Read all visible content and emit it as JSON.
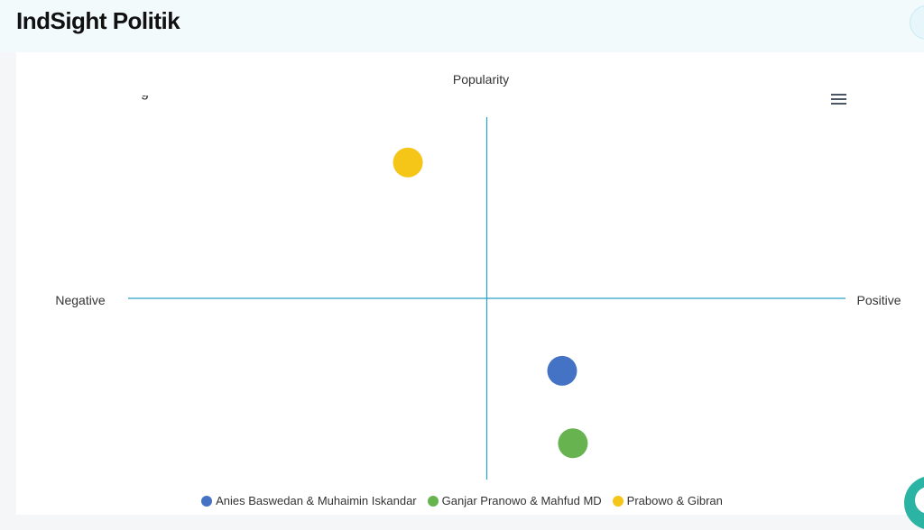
{
  "app": {
    "title": "IndSight Politik"
  },
  "chart_data": {
    "type": "scatter",
    "title": "",
    "axis_labels": {
      "top": "Popularity",
      "left": "Negative",
      "right": "Positive"
    },
    "xlim": [
      -100,
      100
    ],
    "ylim": [
      -100,
      100
    ],
    "grid": false,
    "legend_position": "bottom",
    "series": [
      {
        "name": "Anies Baswedan & Muhaimin Iskandar",
        "color": "#4472c4",
        "points": [
          {
            "x": 21,
            "y": -40
          }
        ]
      },
      {
        "name": "Ganjar Pranowo & Mahfud MD",
        "color": "#67b34f",
        "points": [
          {
            "x": 24,
            "y": -80
          }
        ]
      },
      {
        "name": "Prabowo & Gibran",
        "color": "#f5c518",
        "points": [
          {
            "x": -22,
            "y": 75
          }
        ]
      }
    ]
  }
}
